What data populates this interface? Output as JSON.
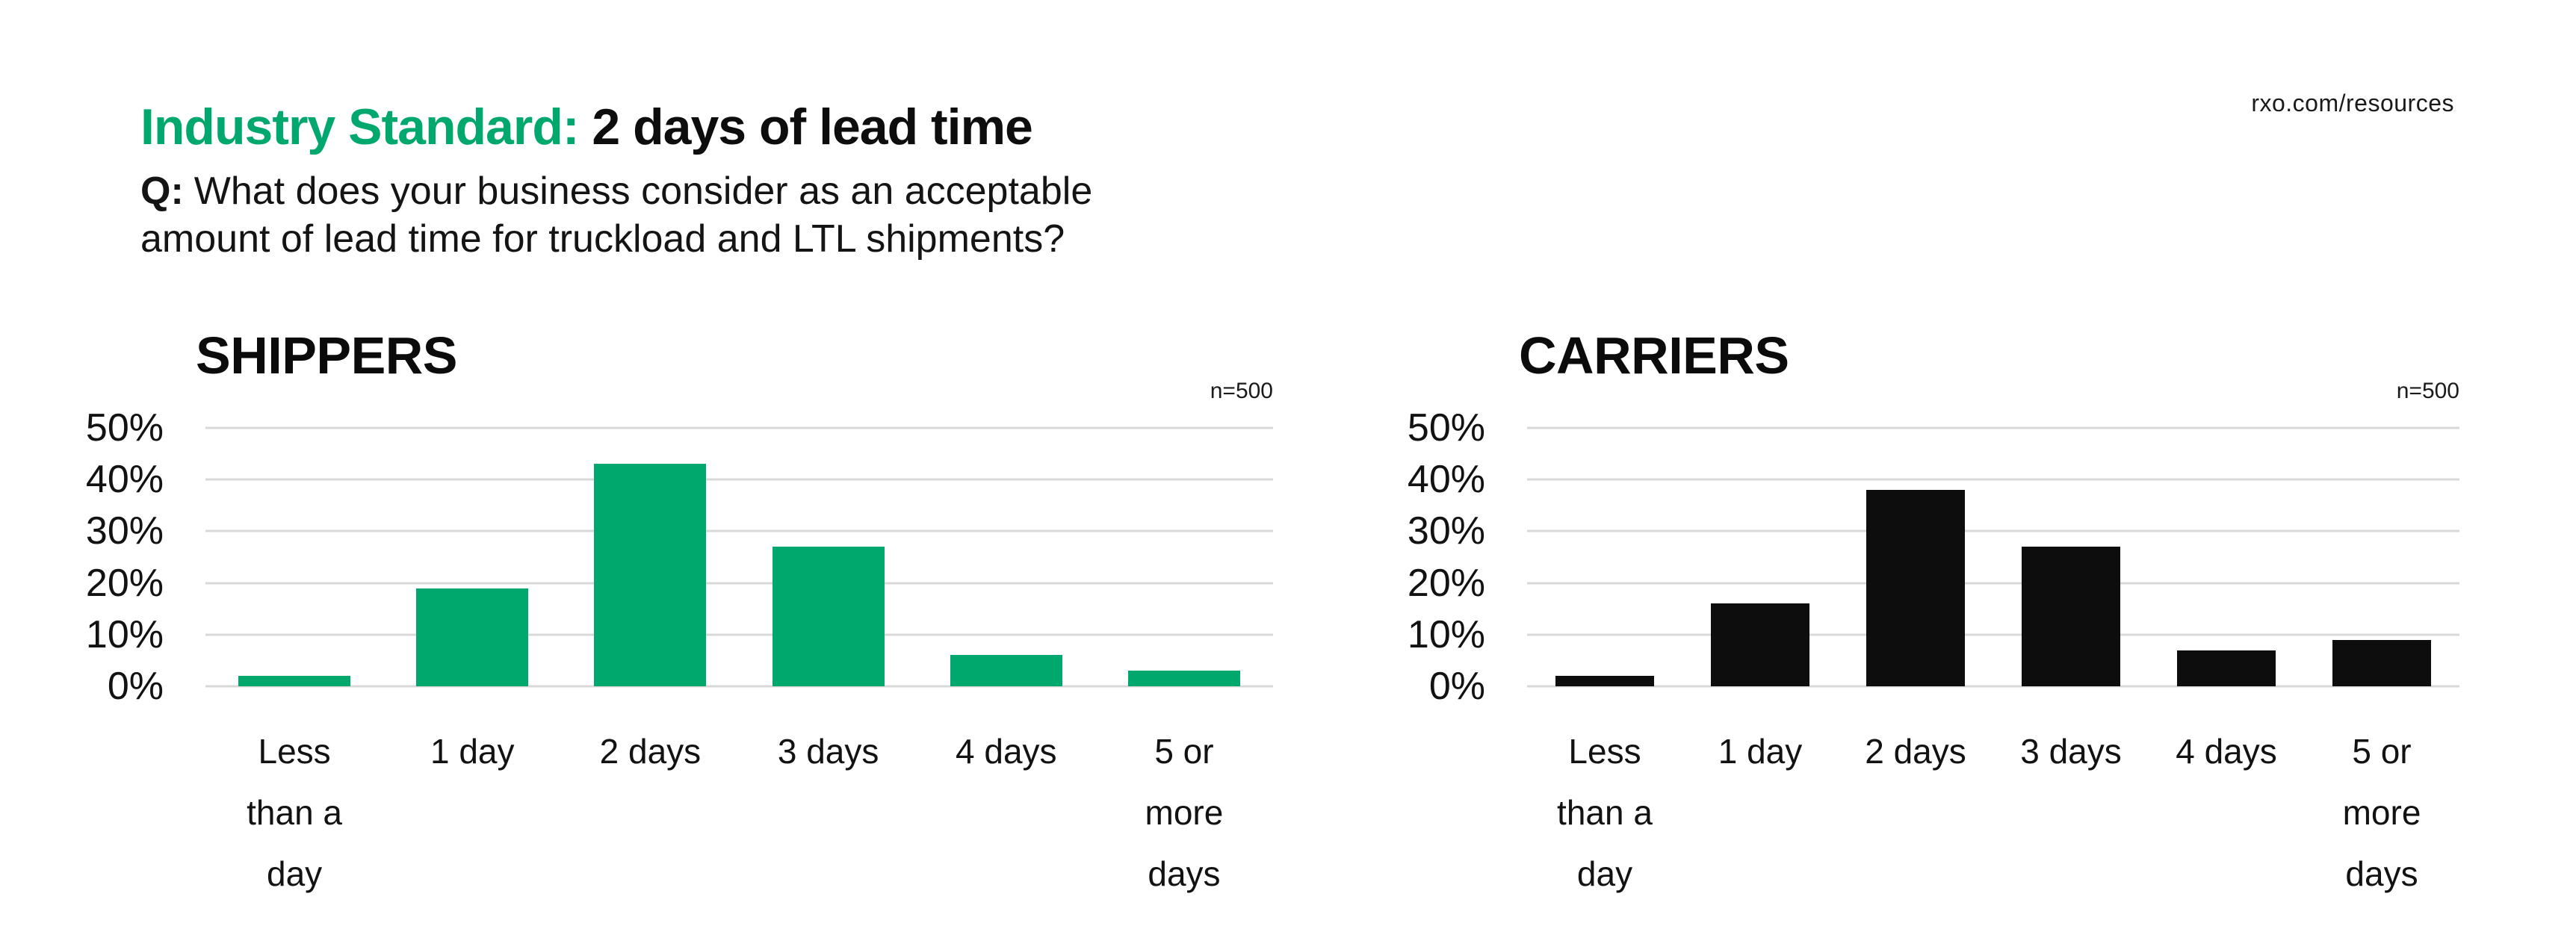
{
  "header": {
    "title_highlight": "Industry Standard:",
    "title_rest": "2 days of lead time",
    "source": "rxo.com/resources",
    "question_label": "Q:",
    "question_lines": [
      "What does your business consider as an acceptable",
      "amount of lead time for truckload and LTL shipments?"
    ]
  },
  "colors": {
    "brand_green": "#00a86e",
    "bar_black": "#0d0d0d",
    "gridline": "#d8d8d8"
  },
  "chart_data": [
    {
      "type": "bar",
      "title": "SHIPPERS",
      "sample_size_label": "n=500",
      "categories": [
        "Less than a day",
        "1 day",
        "2 days",
        "3 days",
        "4 days",
        "5 or more days"
      ],
      "category_label_lines": [
        [
          "Less",
          "than a",
          "day"
        ],
        [
          "1 day"
        ],
        [
          "2 days"
        ],
        [
          "3 days"
        ],
        [
          "4 days"
        ],
        [
          "5 or",
          "more",
          "days"
        ]
      ],
      "values": [
        2,
        19,
        43,
        27,
        6,
        3
      ],
      "unit": "%",
      "bar_color": "#00a86e",
      "y_ticks": [
        "50%",
        "40%",
        "30%",
        "20%",
        "10%",
        "0%"
      ],
      "ylim": [
        0,
        50
      ],
      "grid": true,
      "legend": false
    },
    {
      "type": "bar",
      "title": "CARRIERS",
      "sample_size_label": "n=500",
      "categories": [
        "Less than a day",
        "1 day",
        "2 days",
        "3 days",
        "4 days",
        "5 or more days"
      ],
      "category_label_lines": [
        [
          "Less",
          "than a",
          "day"
        ],
        [
          "1 day"
        ],
        [
          "2 days"
        ],
        [
          "3 days"
        ],
        [
          "4 days"
        ],
        [
          "5 or",
          "more",
          "days"
        ]
      ],
      "values": [
        2,
        16,
        38,
        27,
        7,
        9
      ],
      "unit": "%",
      "bar_color": "#0d0d0d",
      "y_ticks": [
        "50%",
        "40%",
        "30%",
        "20%",
        "10%",
        "0%"
      ],
      "ylim": [
        0,
        50
      ],
      "grid": true,
      "legend": false
    }
  ]
}
